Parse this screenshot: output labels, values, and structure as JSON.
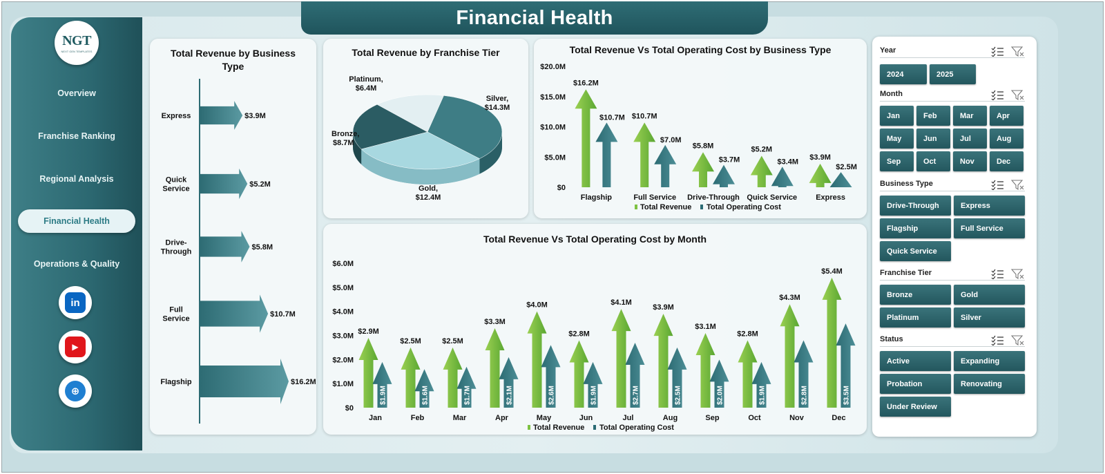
{
  "title": "Financial Health",
  "logo": {
    "text": "NGT",
    "subtext": "NEXT GEN TEMPLATES"
  },
  "nav": [
    {
      "label": "Overview",
      "active": false
    },
    {
      "label": "Franchise Ranking",
      "active": false
    },
    {
      "label": "Regional Analysis",
      "active": false
    },
    {
      "label": "Financial Health",
      "active": true
    },
    {
      "label": "Operations & Quality",
      "active": false
    }
  ],
  "social": [
    {
      "name": "linkedin",
      "glyph": "in",
      "color": "#0a66c2"
    },
    {
      "name": "youtube",
      "glyph": "▶",
      "color": "#e0161b"
    },
    {
      "name": "website",
      "glyph": "⊕",
      "color": "#1f7fd1"
    }
  ],
  "colors": {
    "revenue": "#7dc242",
    "cost": "#2b6b74",
    "arrow": "#2c6b73"
  },
  "chart_data": [
    {
      "id": "revenue-by-business-type",
      "type": "bar",
      "title": "Total Revenue by Business Type",
      "categories": [
        "Express",
        "Quick Service",
        "Drive-Through",
        "Full Service",
        "Flagship"
      ],
      "values": [
        3.9,
        5.2,
        5.8,
        10.7,
        16.2
      ],
      "labels": [
        "$3.9M",
        "$5.2M",
        "$5.8M",
        "$10.7M",
        "$16.2M"
      ],
      "orientation": "horizontal"
    },
    {
      "id": "revenue-by-franchise-tier",
      "type": "pie",
      "title": "Total Revenue by Franchise Tier",
      "slices": [
        {
          "name": "Platinum",
          "value": 6.4,
          "label": "$6.4M",
          "color": "#e3eff2"
        },
        {
          "name": "Silver",
          "value": 14.3,
          "label": "$14.3M",
          "color": "#3e7d85"
        },
        {
          "name": "Gold",
          "value": 12.4,
          "label": "$12.4M",
          "color": "#a8d8e0"
        },
        {
          "name": "Bronze",
          "value": 8.7,
          "label": "$8.7M",
          "color": "#2b5c63"
        }
      ]
    },
    {
      "id": "revenue-vs-cost-by-business-type",
      "type": "bar",
      "title": "Total Revenue Vs Total Operating Cost by Business Type",
      "categories": [
        "Flagship",
        "Full Service",
        "Drive-Through",
        "Quick Service",
        "Express"
      ],
      "series": [
        {
          "name": "Total Revenue",
          "values": [
            16.2,
            10.7,
            5.8,
            5.2,
            3.9
          ],
          "labels": [
            "$16.2M",
            "$10.7M",
            "$5.8M",
            "$5.2M",
            "$3.9M"
          ]
        },
        {
          "name": "Total Operating Cost",
          "values": [
            10.7,
            7.0,
            3.7,
            3.4,
            2.5
          ],
          "labels": [
            "$10.7M",
            "$7.0M",
            "$3.7M",
            "$3.4M",
            "$2.5M"
          ]
        }
      ],
      "yticks": [
        "$0",
        "$5.0M",
        "$10.0M",
        "$15.0M",
        "$20.0M"
      ],
      "ylim": [
        0,
        20
      ],
      "legend": "bottom"
    },
    {
      "id": "revenue-vs-cost-by-month",
      "type": "bar",
      "title": "Total Revenue Vs Total Operating Cost by Month",
      "categories": [
        "Jan",
        "Feb",
        "Mar",
        "Apr",
        "May",
        "Jun",
        "Jul",
        "Aug",
        "Sep",
        "Oct",
        "Nov",
        "Dec"
      ],
      "series": [
        {
          "name": "Total Revenue",
          "values": [
            2.9,
            2.5,
            2.5,
            3.3,
            4.0,
            2.8,
            4.1,
            3.9,
            3.1,
            2.8,
            4.3,
            5.4
          ],
          "labels": [
            "$2.9M",
            "$2.5M",
            "$2.5M",
            "$3.3M",
            "$4.0M",
            "$2.8M",
            "$4.1M",
            "$3.9M",
            "$3.1M",
            "$2.8M",
            "$4.3M",
            "$5.4M"
          ]
        },
        {
          "name": "Total Operating Cost",
          "values": [
            1.9,
            1.6,
            1.7,
            2.1,
            2.6,
            1.9,
            2.7,
            2.5,
            2.0,
            1.9,
            2.8,
            3.5
          ],
          "labels": [
            "$1.9M",
            "$1.6M",
            "$1.7M",
            "$2.1M",
            "$2.6M",
            "$1.9M",
            "$2.7M",
            "$2.5M",
            "$2.0M",
            "$1.9M",
            "$2.8M",
            "$3.5M"
          ]
        }
      ],
      "yticks": [
        "$0",
        "$1.0M",
        "$2.0M",
        "$3.0M",
        "$4.0M",
        "$5.0M",
        "$6.0M"
      ],
      "ylim": [
        0,
        6
      ],
      "legend": "bottom"
    }
  ],
  "slicers": [
    {
      "title": "Year",
      "items": [
        "2024",
        "2025"
      ]
    },
    {
      "title": "Month",
      "items": [
        "Jan",
        "Feb",
        "Mar",
        "Apr",
        "May",
        "Jun",
        "Jul",
        "Aug",
        "Sep",
        "Oct",
        "Nov",
        "Dec"
      ]
    },
    {
      "title": "Business Type",
      "items": [
        "Drive-Through",
        "Express",
        "Flagship",
        "Full Service",
        "Quick Service"
      ]
    },
    {
      "title": "Franchise Tier",
      "items": [
        "Bronze",
        "Gold",
        "Platinum",
        "Silver"
      ]
    },
    {
      "title": "Status",
      "items": [
        "Active",
        "Expanding",
        "Probation",
        "Renovating",
        "Under Review"
      ]
    }
  ]
}
